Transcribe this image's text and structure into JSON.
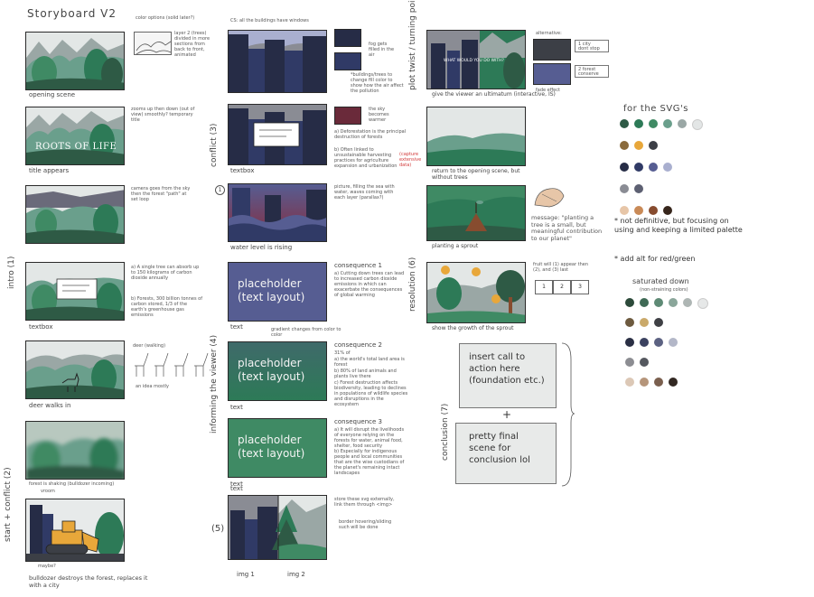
{
  "header": {
    "title": "Storyboard V2"
  },
  "sections": {
    "intro": "intro (1)",
    "start_conflict": "start + conflict (2)",
    "conflict": "conflict (3)",
    "informing": "informing the viewer (4)",
    "sec5": "(5)",
    "plot_twist": "plot twist / turning point (6)",
    "resolution": "resolution (6)",
    "conclusion": "conclusion (7)"
  },
  "col1": {
    "cap_opening": "opening scene",
    "note_color": "color options (solid later?)",
    "note_layer": "layer 2 (trees) divided in more sections from back to front, animated",
    "cap_title": "title appears",
    "note_title": "zooms up then down (out of view) smoothly? temporary title",
    "title_text": "ROOTS OF LIFE",
    "note_camera": "camera goes from the sky then the forest \"path\" at set loop",
    "cap_textbox": "textbox",
    "note_a": "a) A single tree can absorb up to 150 kilograms of carbon dioxide annually",
    "note_b": "b) Forests, 300 billion tonnes of carbon stored, 1/3 of the earth's greenhouse gas emissions",
    "cap_deer": "deer walks in",
    "note_deer_walk": "deer (walking)",
    "note_idea": "an idea mostly",
    "note_forest_shaking": "forest is shaking (bulldozer incoming)",
    "note_vroom": "vroom",
    "note_bulldozer": "bulldozer destroys the forest, replaces it with a city",
    "note_maybe": "maybe?"
  },
  "col2": {
    "note_cs": "CS: all the buildings have windows",
    "note_fog": "fog gets filled in the air",
    "note_buildings": "*buildings/trees to change fill color to show how the air affect the pollution",
    "note_sky": "the sky becomes warmer",
    "cap_textbox": "textbox",
    "note_a": "a) Deforestation is the principal destruction of forests",
    "note_b": "b) Often linked to unsustainable harvesting practices for agriculture expansion and urbanization",
    "note_red": "(capture extensive data)",
    "note_one": "1",
    "note_water": "water level is rising",
    "note_wave": "picture, filling the sea with water, waves coming with each layer (parallax?)",
    "ph1": "placeholder (text layout)",
    "cap_text1": "text",
    "note_gradient": "gradient changes from color to color",
    "cons1_title": "consequence 1",
    "cons1_a": "a) Cutting down trees can lead to increased carbon dioxide emissions in which can exacerbate the consequences of global warming",
    "ph2": "placeholder (text layout)",
    "cap_text2": "text",
    "cons2_title": "consequence 2",
    "cons2_intro": "31% of",
    "cons2_a": "a) the world's total land area is forest",
    "cons2_b": "b) 80% of land animals and plants live there",
    "cons2_c": "c) Forest destruction affects biodiversity, leading to declines in populations of wildlife species and disruptions in the ecosystem",
    "ph3": "placeholder (text layout)",
    "cap_text3": "text",
    "cons3_title": "consequence 3",
    "cons3_a": "a) It will disrupt the livelihoods of everyone relying on the forests for water, animal food, shelter, food security",
    "cons3_b": "b) Especially for indigenous people and local communities that are the wise custodians of the planet's remaining intact landscapes",
    "cap_text4": "text",
    "note_store": "store these svg externally, link them through <img>",
    "note_border": "border hovering/sliding such will be done",
    "cap_img1": "img 1",
    "cap_img2": "img 2",
    "sec5": "(5)"
  },
  "col3": {
    "banner": "WHAT WOULD YOU DO WITH?",
    "note_alt": "alternative:",
    "opt_city": "1 city",
    "opt_city_b": "dont stop",
    "opt_forest": "2 forest",
    "opt_forest_b": "conserve",
    "note_fade": "fade effect",
    "cap_ultimatum": "give the viewer an ultimatum (interactive, IS)",
    "cap_return": "return to the opening scene, but without trees",
    "note_message": "message: \"planting a tree is a small, but meaningful contribution to our planet\"",
    "cap_sprout": "planting a sprout",
    "note_fruit": "fruit will (1) appear then (2), and (3) last",
    "num1": "1",
    "num2": "2",
    "num3": "3",
    "cap_growth": "show the growth of the sprout",
    "cta": "insert call to action here (foundation etc.)",
    "plus": "+",
    "final": "pretty final scene for conclusion lol"
  },
  "palette": {
    "title": "for the SVG's",
    "note1": "* not definitive, but focusing on using and keeping a limited palette",
    "note2": "* add alt for red/green",
    "sat_title": "saturated down",
    "sat_sub": "(non-straining colors)",
    "row1": [
      "#2e5a45",
      "#2d7a57",
      "#3f8a64",
      "#6a9f8c",
      "#9aa7a5",
      "#e3e6e6"
    ],
    "row2": [
      "#8a6a3c",
      "#e8a73a",
      "#3c3f46"
    ],
    "row3": [
      "#262c46",
      "#303a66",
      "#565d92",
      "#a9afcf"
    ],
    "row4": [
      "#8a8c94",
      "#5d6072"
    ],
    "row5": [
      "#e7c6a8",
      "#c98a57",
      "#874c2f",
      "#37261c"
    ],
    "srow1": [
      "#2c4a3a",
      "#3f6a55",
      "#5e8a75",
      "#8aa69a",
      "#aeb6b4",
      "#e6e8e8"
    ],
    "srow2": [
      "#6d5a3f",
      "#caa96a",
      "#3f4045"
    ],
    "srow3": [
      "#2a2f44",
      "#3b4260",
      "#5c6282",
      "#b3b7c8"
    ],
    "srow4": [
      "#8c8d92",
      "#55585f"
    ],
    "srow5": [
      "#dcc8b6",
      "#b5957a",
      "#7a5f4e",
      "#322822"
    ]
  }
}
